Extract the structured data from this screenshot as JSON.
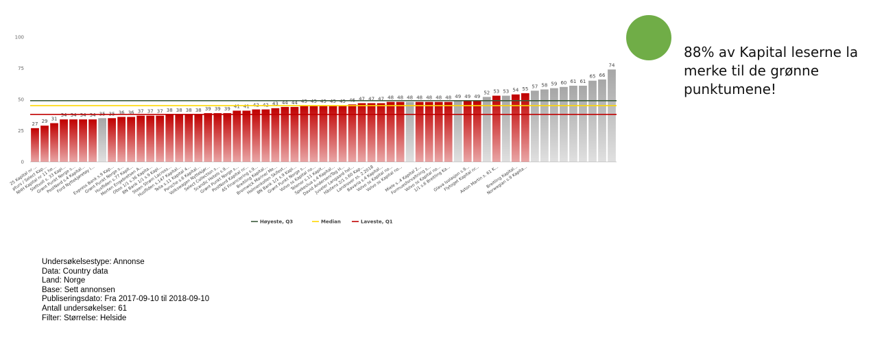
{
  "chart_data": {
    "type": "bar",
    "categories": [
      "25 Kapital nr ...",
      "pturs / Select Kap...",
      "NHH Kapital nr 11 he...",
      "Slettvoll s. 33 Kapi...",
      "Grønt Punkt Norge s...",
      "PostNord s.4 Kapital...",
      "Ford Nyttekjøretøy i...",
      null,
      "Express Bank s.9 Kap...",
      "Grønt Punkt Norge s...",
      "Husfliden s.77 Kapit...",
      "Morten Engebretsen A...",
      "Obos 1/1 s.36 Kapita...",
      "BN Bank 1/1 s.9 Kapi...",
      "Steen Strøm Lacross...",
      "Husfliden s.147 Kapital...",
      "Telia s.11 Kapital 4...",
      "Porsche s.6 Kapital...",
      "Volkswagen Nyttekjør...",
      "Select Collection s...",
      "Scandic Hotels s.9...",
      "Grønt Punkt Norge s...",
      "PostNord Kapital nr...",
      "AS Financiering s.9...",
      "Breitling Kapital...",
      "Bromwick Marine/ Me...",
      "Holmenkollen Skifest...",
      "BN Bank 1/1 s.9 Kapi...",
      "Grønt Punkt Norge s...",
      "Volvo ss Kapital no...",
      "Telenor s.11 Kapit...",
      "Spekeslua s.4 Kapital...",
      "David Andersen/Tag H...",
      "Juveler Langaard hel...",
      "Hästens 2/1 s.60 Kap...",
      "Landrover ss. 2.2018",
      "Bavaria s.4 Kapital...",
      "Volvo ss Kapital no...",
      "Volvo ss Kapital no...",
      null,
      "Miele s..4 Kapital 2...",
      "Formuesforvaltning s...",
      "Volvo ss Kapital no...",
      "1/1 s.6 Breitling Ka...",
      null,
      "Glava Isolasjon s.9...",
      "Flytoget Kapital nr...",
      null,
      "Aston Martin s. 61 K...",
      null,
      "Breitling Kapital...",
      "Norwegian s.9 Kapita...",
      null,
      null,
      null,
      null,
      null,
      null,
      null,
      null,
      null
    ],
    "values": [
      27,
      29,
      31,
      34,
      34,
      34,
      34,
      35,
      35,
      36,
      36,
      37,
      37,
      37,
      38,
      38,
      38,
      38,
      39,
      39,
      39,
      41,
      41,
      42,
      42,
      43,
      44,
      44,
      45,
      45,
      45,
      45,
      45,
      46,
      47,
      47,
      47,
      48,
      48,
      48,
      48,
      48,
      48,
      48,
      49,
      49,
      49,
      52,
      53,
      53,
      54,
      55,
      57,
      58,
      59,
      60,
      61,
      61,
      65,
      66,
      74
    ],
    "colors": [
      "#c00000",
      "#c00000",
      "#c00000",
      "#c00000",
      "#c00000",
      "#c00000",
      "#c00000",
      "#a6a6a6",
      "#c00000",
      "#c00000",
      "#c00000",
      "#c00000",
      "#c00000",
      "#c00000",
      "#c00000",
      "#c00000",
      "#c00000",
      "#c00000",
      "#c00000",
      "#c00000",
      "#c00000",
      "#c00000",
      "#c00000",
      "#c00000",
      "#c00000",
      "#c00000",
      "#c00000",
      "#c00000",
      "#c00000",
      "#c00000",
      "#c00000",
      "#c00000",
      "#c00000",
      "#c00000",
      "#c00000",
      "#c00000",
      "#c00000",
      "#c00000",
      "#c00000",
      "#a6a6a6",
      "#c00000",
      "#c00000",
      "#c00000",
      "#c00000",
      "#a6a6a6",
      "#c00000",
      "#c00000",
      "#a6a6a6",
      "#c00000",
      "#a6a6a6",
      "#c00000",
      "#c00000",
      "#a6a6a6",
      "#a6a6a6",
      "#a6a6a6",
      "#a6a6a6",
      "#a6a6a6",
      "#a6a6a6",
      "#a6a6a6",
      "#a6a6a6",
      "#a6a6a6"
    ],
    "reference_lines": [
      {
        "name": "Høyeste, Q3",
        "value": 49,
        "color": "#3a5a3a"
      },
      {
        "name": "Median",
        "value": 45,
        "color": "#ffd700"
      },
      {
        "name": "Laveste, Q1",
        "value": 38,
        "color": "#c00000"
      }
    ],
    "ylim": [
      0,
      100
    ],
    "yticks": [
      0,
      25,
      50,
      75,
      100
    ],
    "grid": false,
    "legend": "bottom"
  },
  "note": "88% av Kapital leserne la merke til de grønne punktumene!",
  "info": [
    "Undersøkelsestype: Annonse",
    "Data: Country data",
    "Land: Norge",
    "Base: Sett annonsen",
    "Publiseringsdato: Fra 2017-09-10 til 2018-09-10",
    "Antall undersøkelser: 61",
    "Filter: Størrelse: Helside"
  ]
}
